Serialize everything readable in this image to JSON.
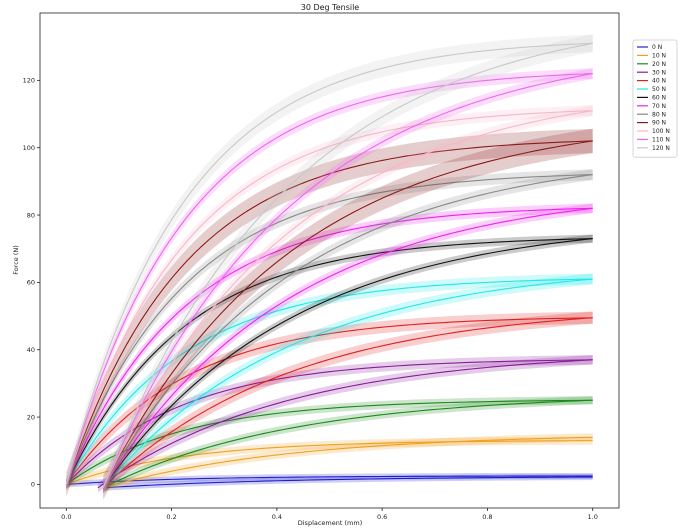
{
  "chart_data": {
    "type": "line",
    "title": "30 Deg Tensile",
    "xlabel": "Displacement (mm)",
    "ylabel": "Force (N)",
    "xlim": [
      -0.05,
      1.05
    ],
    "ylim": [
      -7,
      140
    ],
    "x_ticks": [
      0.0,
      0.2,
      0.4,
      0.6,
      0.8,
      1.0
    ],
    "x_tick_labels": [
      "0.0",
      "0.2",
      "0.4",
      "0.6",
      "0.8",
      "1.0"
    ],
    "y_ticks": [
      0,
      20,
      40,
      60,
      80,
      100,
      120
    ],
    "y_tick_labels": [
      "0",
      "20",
      "40",
      "60",
      "80",
      "100",
      "120"
    ],
    "grid": false,
    "legend_position": "top-right",
    "series": [
      {
        "name": "0 N",
        "color": "#1f1fcf",
        "loading_peak": 2.5,
        "unloading_end": 2.2,
        "unload_start_x": 0.07,
        "band": 0.3
      },
      {
        "name": "10 N",
        "color": "#f0a020",
        "loading_peak": 13.0,
        "unloading_end": 14.0,
        "unload_start_x": 0.07,
        "band": 0.6
      },
      {
        "name": "20 N",
        "color": "#1a8a1a",
        "loading_peak": 25.0,
        "unloading_end": 25.0,
        "unload_start_x": 0.07,
        "band": 0.6
      },
      {
        "name": "30 N",
        "color": "#8a1a9a",
        "loading_peak": 37.0,
        "unloading_end": 37.0,
        "unload_start_x": 0.06,
        "band": 0.8
      },
      {
        "name": "40 N",
        "color": "#e02020",
        "loading_peak": 49.5,
        "unloading_end": 49.5,
        "unload_start_x": 0.07,
        "band": 1.2
      },
      {
        "name": "50 N",
        "color": "#20e8e8",
        "loading_peak": 61.0,
        "unloading_end": 61.0,
        "unload_start_x": 0.07,
        "band": 1.0
      },
      {
        "name": "60 N",
        "color": "#111111",
        "loading_peak": 73.0,
        "unloading_end": 73.0,
        "unload_start_x": 0.07,
        "band": 0.6
      },
      {
        "name": "70 N",
        "color": "#ee22ee",
        "loading_peak": 82.0,
        "unloading_end": 82.0,
        "unload_start_x": 0.07,
        "band": 0.8
      },
      {
        "name": "80 N",
        "color": "#888888",
        "loading_peak": 92.0,
        "unloading_end": 92.0,
        "unload_start_x": 0.07,
        "band": 1.0
      },
      {
        "name": "90 N",
        "color": "#8b1a1a",
        "loading_peak": 102.0,
        "unloading_end": 102.0,
        "unload_start_x": 0.07,
        "band": 3.0
      },
      {
        "name": "100 N",
        "color": "#f4b8c8",
        "loading_peak": 111.0,
        "unloading_end": 111.0,
        "unload_start_x": 0.07,
        "band": 1.0
      },
      {
        "name": "110 N",
        "color": "#ee66ee",
        "loading_peak": 122.0,
        "unloading_end": 122.0,
        "unload_start_x": 0.07,
        "band": 1.0
      },
      {
        "name": "120 N",
        "color": "#c8c8c8",
        "loading_peak": 131.0,
        "unloading_end": 131.0,
        "unload_start_x": 0.07,
        "band": 2.0
      }
    ]
  }
}
